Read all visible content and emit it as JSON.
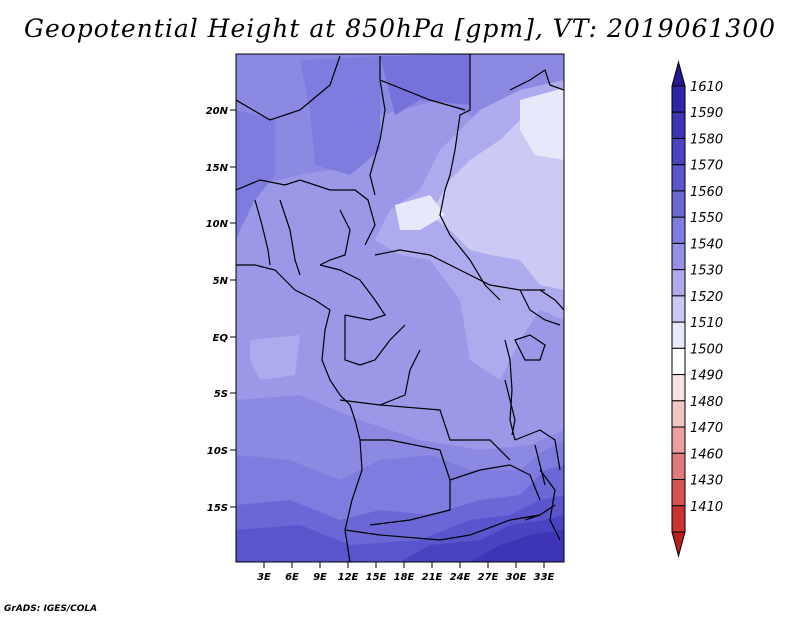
{
  "title": "Geopotential Height at 850hPa [gpm], VT: 2019061300",
  "credit": "GrADS: IGES/COLA",
  "map": {
    "lat_ticks": [
      "20N",
      "15N",
      "10N",
      "5N",
      "EQ",
      "5S",
      "10S",
      "15S"
    ],
    "lon_ticks": [
      "3E",
      "6E",
      "9E",
      "12E",
      "15E",
      "18E",
      "21E",
      "24E",
      "27E",
      "30E",
      "33E"
    ]
  },
  "colorbar": {
    "levels": [
      "1610",
      "1590",
      "1580",
      "1570",
      "1560",
      "1550",
      "1540",
      "1530",
      "1520",
      "1510",
      "1500",
      "1490",
      "1480",
      "1470",
      "1460",
      "1430",
      "1410"
    ],
    "colors": [
      "#241a90",
      "#3027a8",
      "#3d35b6",
      "#4a44c2",
      "#5a55cc",
      "#6b67d6",
      "#7f7cdf",
      "#9592e6",
      "#adabed",
      "#cacaf5",
      "#e8e8fb",
      "#ffffff",
      "#f8e1e1",
      "#f3c4c4",
      "#eaa0a0",
      "#e07a7a",
      "#d65454",
      "#cb3333",
      "#b82121"
    ]
  }
}
